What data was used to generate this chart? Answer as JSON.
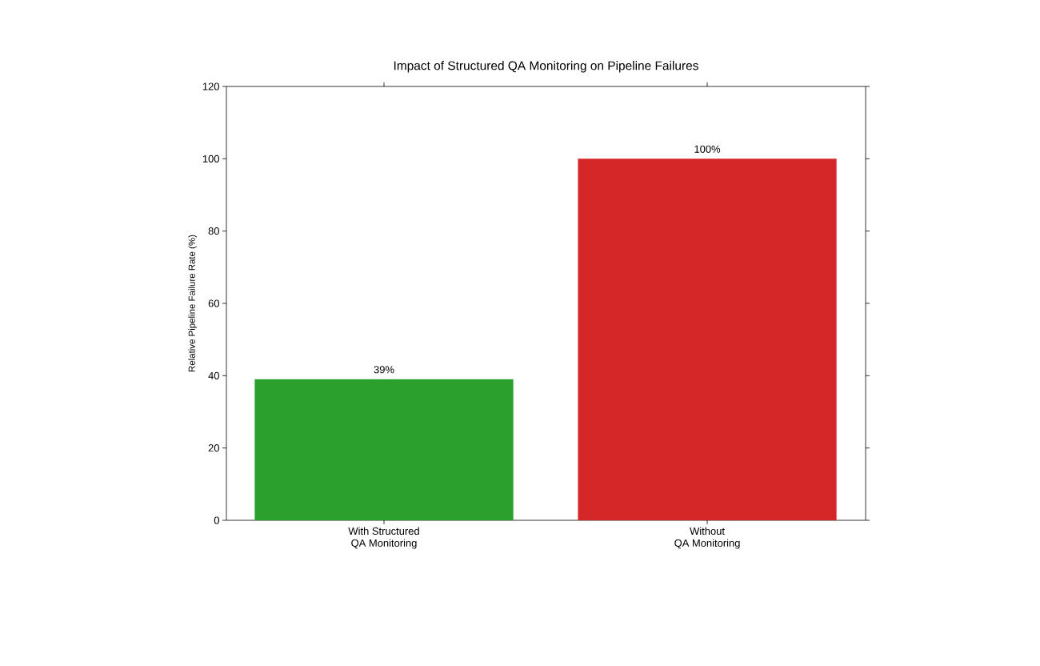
{
  "chart_data": {
    "type": "bar",
    "title": "Impact of Structured QA Monitoring on Pipeline Failures",
    "ylabel": "Relative Pipeline Failure Rate (%)",
    "categories": [
      "With Structured\nQA Monitoring",
      "Without\nQA Monitoring"
    ],
    "values": [
      39,
      100
    ],
    "colors": [
      "#2ca02c",
      "#d62728"
    ],
    "value_labels": [
      "39%",
      "100%"
    ],
    "ylim": [
      0,
      120
    ],
    "yticks": [
      0,
      20,
      40,
      60,
      80,
      100,
      120
    ]
  }
}
